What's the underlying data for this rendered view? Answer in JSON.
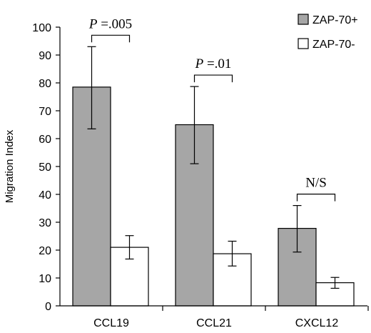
{
  "chart_data": {
    "type": "bar",
    "title": "",
    "xlabel": "",
    "ylabel": "Migration Index",
    "ylim": [
      0,
      100
    ],
    "yticks": [
      0,
      10,
      20,
      30,
      40,
      50,
      60,
      70,
      80,
      90,
      100
    ],
    "categories": [
      "CCL19",
      "CCL21",
      "CXCL12"
    ],
    "series": [
      {
        "name": "ZAP-70+",
        "color": "#a6a6a6",
        "values": [
          78.5,
          65,
          27.8
        ],
        "error_low": [
          63.5,
          51,
          19.3
        ],
        "error_high": [
          93,
          78.7,
          36
        ]
      },
      {
        "name": "ZAP-70-",
        "color": "#ffffff",
        "values": [
          21,
          18.7,
          8.3
        ],
        "error_low": [
          16.8,
          14.3,
          6.3
        ],
        "error_high": [
          25.2,
          23.2,
          10.2
        ]
      }
    ],
    "legend_position": "top-right",
    "grid": false,
    "annotations": [
      {
        "category": "CCL19",
        "prefix": "P",
        "rest": " =.005"
      },
      {
        "category": "CCL21",
        "prefix": "P",
        "rest": " =.01"
      },
      {
        "category": "CXCL12",
        "prefix": "",
        "rest": "N/S"
      }
    ]
  }
}
